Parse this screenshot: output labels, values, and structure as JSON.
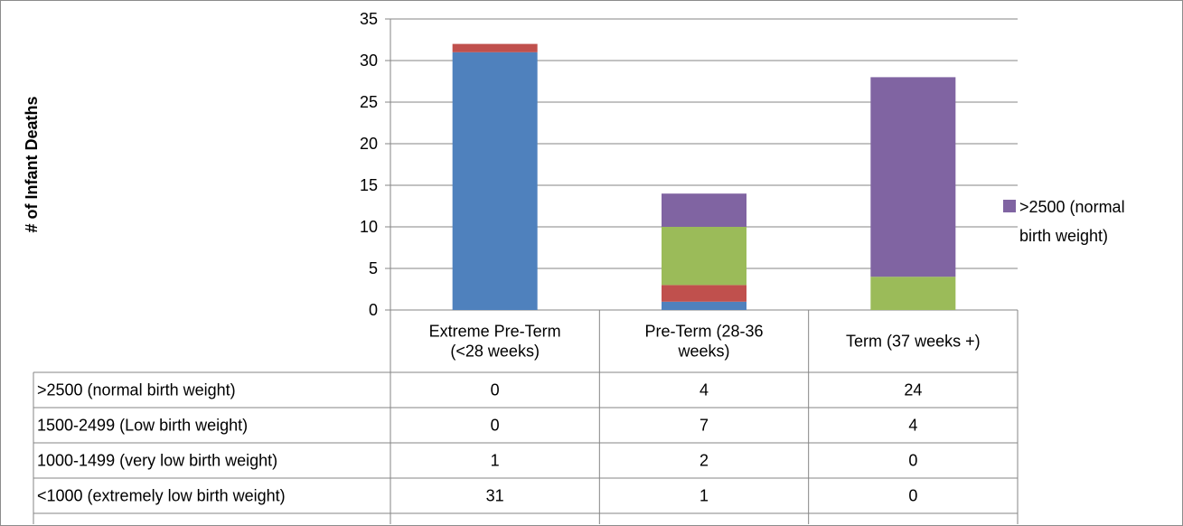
{
  "chart_data": {
    "type": "bar",
    "stacked": true,
    "title": "",
    "xlabel": "",
    "ylabel": "# of Infant Deaths",
    "ylim": [
      0,
      35
    ],
    "yticks": [
      0,
      5,
      10,
      15,
      20,
      25,
      30,
      35
    ],
    "grid": true,
    "categories": [
      [
        "Extreme Pre-Term",
        "(<28 weeks)"
      ],
      [
        "Pre-Term (28-36",
        "weeks)"
      ],
      [
        "Term (37 weeks +)"
      ]
    ],
    "series": [
      {
        "name": "<1000 (extremely low birth weight)",
        "color": "#4f81bd",
        "values": [
          31,
          1,
          0
        ]
      },
      {
        "name": "1000-1499 (very low birth weight)",
        "color": "#c0504d",
        "values": [
          1,
          2,
          0
        ]
      },
      {
        "name": "1500-2499 (Low birth weight)",
        "color": "#9bbb59",
        "values": [
          0,
          7,
          4
        ]
      },
      {
        "name": ">2500 (normal birth weight)",
        "color": "#8064a2",
        "values": [
          0,
          4,
          24
        ]
      }
    ],
    "table_row_order": [
      3,
      2,
      1,
      0
    ],
    "legend": {
      "placement": "right",
      "visible_entries": [
        {
          "lines": [
            ">2500 (normal",
            "birth weight)"
          ],
          "color": "#8064a2"
        }
      ]
    }
  }
}
